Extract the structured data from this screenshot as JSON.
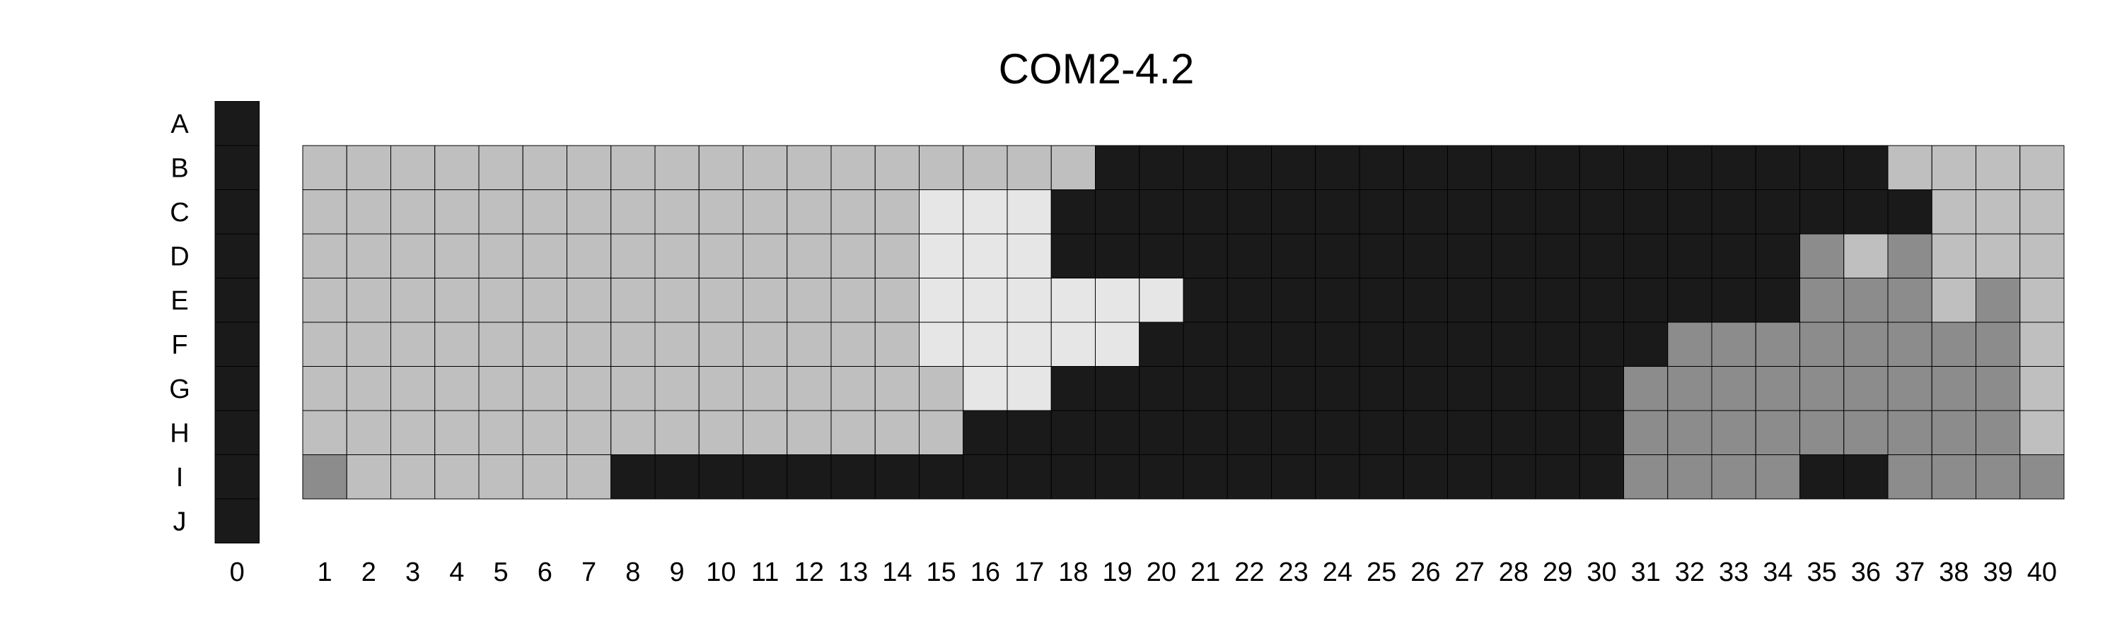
{
  "chart_data": {
    "type": "heatmap",
    "title": "COM2-4.2",
    "rows": [
      "A",
      "B",
      "C",
      "D",
      "E",
      "F",
      "G",
      "H",
      "I",
      "J"
    ],
    "x_ticks": [
      "0",
      "1",
      "2",
      "3",
      "4",
      "5",
      "6",
      "7",
      "8",
      "9",
      "10",
      "11",
      "12",
      "13",
      "14",
      "15",
      "16",
      "17",
      "18",
      "19",
      "20",
      "21",
      "22",
      "23",
      "24",
      "25",
      "26",
      "27",
      "28",
      "29",
      "30",
      "31",
      "32",
      "33",
      "34",
      "35",
      "36",
      "37",
      "38",
      "39",
      "40"
    ],
    "column0_values": [
      3,
      3,
      3,
      3,
      3,
      3,
      3,
      3,
      3,
      3
    ],
    "legend": {
      "0": {
        "meaning": "light",
        "color": "#e6e6e6"
      },
      "1": {
        "meaning": "medium-light",
        "color": "#bfbfbf"
      },
      "2": {
        "meaning": "medium",
        "color": "#8c8c8c"
      },
      "3": {
        "meaning": "dark",
        "color": "#1a1a1a"
      }
    },
    "grid_rows": [
      "B",
      "C",
      "D",
      "E",
      "F",
      "G",
      "H",
      "I"
    ],
    "grid_columns_range": [
      1,
      40
    ],
    "values": [
      [
        1,
        1,
        1,
        1,
        1,
        1,
        1,
        1,
        1,
        1,
        1,
        1,
        1,
        1,
        1,
        1,
        1,
        1,
        3,
        3,
        3,
        3,
        3,
        3,
        3,
        3,
        3,
        3,
        3,
        3,
        3,
        3,
        3,
        3,
        3,
        3,
        1,
        1,
        1,
        1
      ],
      [
        1,
        1,
        1,
        1,
        1,
        1,
        1,
        1,
        1,
        1,
        1,
        1,
        1,
        1,
        0,
        0,
        0,
        3,
        3,
        3,
        3,
        3,
        3,
        3,
        3,
        3,
        3,
        3,
        3,
        3,
        3,
        3,
        3,
        3,
        3,
        3,
        3,
        1,
        1,
        1
      ],
      [
        1,
        1,
        1,
        1,
        1,
        1,
        1,
        1,
        1,
        1,
        1,
        1,
        1,
        1,
        0,
        0,
        0,
        3,
        3,
        3,
        3,
        3,
        3,
        3,
        3,
        3,
        3,
        3,
        3,
        3,
        3,
        3,
        3,
        3,
        2,
        1,
        2,
        1,
        1,
        1
      ],
      [
        1,
        1,
        1,
        1,
        1,
        1,
        1,
        1,
        1,
        1,
        1,
        1,
        1,
        1,
        0,
        0,
        0,
        0,
        0,
        0,
        3,
        3,
        3,
        3,
        3,
        3,
        3,
        3,
        3,
        3,
        3,
        3,
        3,
        3,
        2,
        2,
        2,
        1,
        2,
        1
      ],
      [
        1,
        1,
        1,
        1,
        1,
        1,
        1,
        1,
        1,
        1,
        1,
        1,
        1,
        1,
        0,
        0,
        0,
        0,
        0,
        3,
        3,
        3,
        3,
        3,
        3,
        3,
        3,
        3,
        3,
        3,
        3,
        2,
        2,
        2,
        2,
        2,
        2,
        2,
        2,
        1
      ],
      [
        1,
        1,
        1,
        1,
        1,
        1,
        1,
        1,
        1,
        1,
        1,
        1,
        1,
        1,
        1,
        0,
        0,
        3,
        3,
        3,
        3,
        3,
        3,
        3,
        3,
        3,
        3,
        3,
        3,
        3,
        2,
        2,
        2,
        2,
        2,
        2,
        2,
        2,
        2,
        1
      ],
      [
        1,
        1,
        1,
        1,
        1,
        1,
        1,
        1,
        1,
        1,
        1,
        1,
        1,
        1,
        1,
        3,
        3,
        3,
        3,
        3,
        3,
        3,
        3,
        3,
        3,
        3,
        3,
        3,
        3,
        3,
        2,
        2,
        2,
        2,
        2,
        2,
        2,
        2,
        2,
        1
      ],
      [
        2,
        1,
        1,
        1,
        1,
        1,
        1,
        3,
        3,
        3,
        3,
        3,
        3,
        3,
        3,
        3,
        3,
        3,
        3,
        3,
        3,
        3,
        3,
        3,
        3,
        3,
        3,
        3,
        3,
        3,
        2,
        2,
        2,
        2,
        3,
        3,
        2,
        2,
        2,
        2
      ]
    ]
  }
}
